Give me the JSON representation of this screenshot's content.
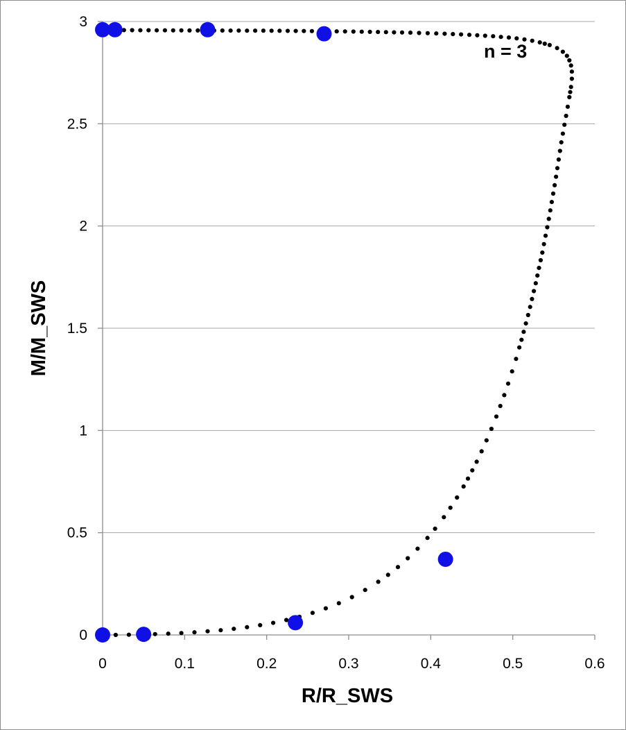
{
  "chart_data": {
    "type": "scatter",
    "title": "",
    "xlabel": "R/R_SWS",
    "ylabel": "M/M_SWS",
    "xlim": [
      0,
      0.6
    ],
    "ylim": [
      0,
      3
    ],
    "xticks": [
      "0",
      "0.1",
      "0.2",
      "0.3",
      "0.4",
      "0.5",
      "0.6"
    ],
    "yticks": [
      "0",
      "0.5",
      "1",
      "1.5",
      "2",
      "2.5",
      "3"
    ],
    "grid": "horizontal major gridlines",
    "legend": "none",
    "annotation": "n = 3",
    "colors": {
      "curve": "#000000",
      "highlight": "#1010e6",
      "grid": "#a6a6a6"
    },
    "series": [
      {
        "marker": "small black dots",
        "x": [
          0.0,
          0.008,
          0.016,
          0.024,
          0.032,
          0.04,
          0.048,
          0.056,
          0.064,
          0.072,
          0.08,
          0.088,
          0.096,
          0.104,
          0.112,
          0.12,
          0.128,
          0.136,
          0.144,
          0.152,
          0.16,
          0.168,
          0.176,
          0.184,
          0.192,
          0.2,
          0.208,
          0.216,
          0.224,
          0.232,
          0.24,
          0.248,
          0.256,
          0.264,
          0.272,
          0.28,
          0.288,
          0.296,
          0.304,
          0.312,
          0.32,
          0.328,
          0.336,
          0.344,
          0.352,
          0.36,
          0.368,
          0.376,
          0.384,
          0.392,
          0.4,
          0.408,
          0.416,
          0.424,
          0.432,
          0.44,
          0.448,
          0.456,
          0.464,
          0.472,
          0.48,
          0.488,
          0.496,
          0.504,
          0.512,
          0.52,
          0.528,
          0.536,
          0.544,
          0.552,
          0.56,
          0.566,
          0.569,
          0.571,
          0.572,
          0.572,
          0.571,
          0.569,
          0.566,
          0.561,
          0.554,
          0.545,
          0.533,
          0.519,
          0.5,
          0.476,
          0.447,
          0.412,
          0.37,
          0.321,
          0.265,
          0.201,
          0.131,
          0.066,
          0.016,
          0.0
        ],
        "y": [
          0.0,
          0.0,
          0.0,
          0.0,
          0.001,
          0.002,
          0.002,
          0.003,
          0.004,
          0.005,
          0.006,
          0.008,
          0.009,
          0.011,
          0.013,
          0.015,
          0.018,
          0.02,
          0.023,
          0.026,
          0.03,
          0.034,
          0.038,
          0.043,
          0.048,
          0.053,
          0.059,
          0.066,
          0.073,
          0.081,
          0.089,
          0.098,
          0.108,
          0.118,
          0.13,
          0.142,
          0.155,
          0.17,
          0.185,
          0.202,
          0.22,
          0.239,
          0.26,
          0.282,
          0.306,
          0.332,
          0.36,
          0.39,
          0.422,
          0.456,
          0.493,
          0.533,
          0.576,
          0.622,
          0.672,
          0.726,
          0.784,
          0.847,
          0.915,
          0.988,
          1.068,
          1.154,
          1.248,
          1.35,
          1.462,
          1.585,
          1.72,
          1.87,
          2.035,
          2.22,
          2.43,
          2.56,
          2.63,
          2.68,
          2.72,
          2.755,
          2.785,
          2.81,
          2.832,
          2.852,
          2.87,
          2.885,
          2.898,
          2.91,
          2.92,
          2.928,
          2.935,
          2.941,
          2.946,
          2.95,
          2.953,
          2.955,
          2.956,
          2.957,
          2.958,
          2.958
        ]
      },
      {
        "marker": "large blue dots",
        "x": [
          0.0,
          0.05,
          0.235,
          0.418,
          0.27,
          0.128,
          0.015,
          0.0
        ],
        "y": [
          0.0,
          0.003,
          0.06,
          0.37,
          2.94,
          2.96,
          2.96,
          2.96
        ]
      }
    ]
  }
}
